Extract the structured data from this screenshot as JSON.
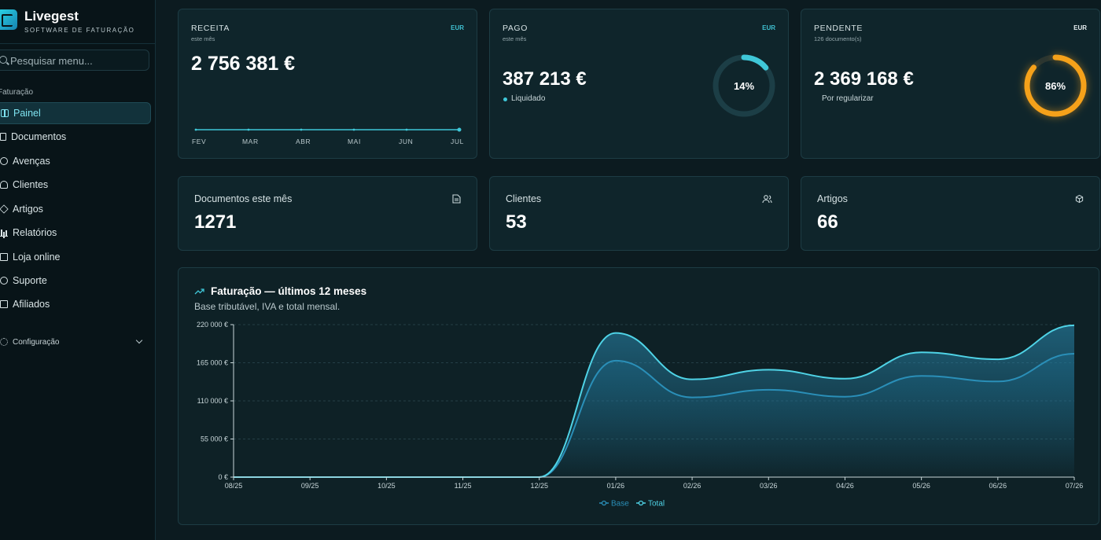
{
  "brand": {
    "name": "Livegest",
    "subtitle": "SOFTWARE DE FATURAÇÃO"
  },
  "search": {
    "placeholder": "Pesquisar menu..."
  },
  "sidebar": {
    "section_label": "Faturação",
    "items": [
      {
        "label": "Painel",
        "icon": "dashboard-icon",
        "active": true
      },
      {
        "label": "Documentos",
        "icon": "document-icon"
      },
      {
        "label": "Avenças",
        "icon": "recurring-icon"
      },
      {
        "label": "Clientes",
        "icon": "users-icon"
      },
      {
        "label": "Artigos",
        "icon": "box-icon"
      },
      {
        "label": "Relatórios",
        "icon": "bar-chart-icon"
      },
      {
        "label": "Loja online",
        "icon": "store-icon"
      },
      {
        "label": "Suporte",
        "icon": "help-icon"
      },
      {
        "label": "Afiliados",
        "icon": "gift-icon"
      }
    ],
    "config_label": "Configuração"
  },
  "kpi": {
    "receita": {
      "label": "RECEITA",
      "sub": "este mês",
      "currency": "EUR",
      "value": "2 756 381 €",
      "months": [
        "FEV",
        "MAR",
        "ABR",
        "MAI",
        "JUN",
        "JUL"
      ]
    },
    "pago": {
      "label": "PAGO",
      "sub": "este mês",
      "currency": "EUR",
      "value": "387 213 €",
      "status": "Liquidado",
      "percent_label": "14%",
      "percent": 14,
      "color": "#3fc7d8"
    },
    "pendente": {
      "label": "PENDENTE",
      "sub": "126 documento(s)",
      "currency": "EUR",
      "value": "2 369 168 €",
      "status": "Por regularizar",
      "percent_label": "86%",
      "percent": 86,
      "color": "#f5a11a"
    }
  },
  "stats": [
    {
      "label": "Documentos este mês",
      "value": "1271",
      "icon": "document-icon"
    },
    {
      "label": "Clientes",
      "value": "53",
      "icon": "users-icon"
    },
    {
      "label": "Artigos",
      "value": "66",
      "icon": "box-icon"
    }
  ],
  "chart_panel": {
    "title": "Faturação — últimos 12 meses",
    "subtitle": "Base tributável, IVA e total mensal.",
    "trend_icon": "trend-up-icon"
  },
  "chart_data": {
    "type": "area",
    "categories": [
      "08/25",
      "09/25",
      "10/25",
      "11/25",
      "12/25",
      "01/26",
      "02/26",
      "03/26",
      "04/26",
      "05/26",
      "06/26",
      "07/26"
    ],
    "series": [
      {
        "name": "Base",
        "color": "#2a8fb8",
        "values": [
          0,
          0,
          0,
          0,
          0,
          168000,
          115000,
          126000,
          116000,
          146000,
          138000,
          178000
        ]
      },
      {
        "name": "Total",
        "color": "#4fd3e6",
        "values": [
          0,
          0,
          0,
          0,
          0,
          208000,
          141000,
          155000,
          142000,
          180000,
          170000,
          219000
        ]
      }
    ],
    "yticks": [
      "0 €",
      "55 000 €",
      "110 000 €",
      "165 000 €",
      "220 000 €"
    ],
    "ylim": [
      0,
      220000
    ],
    "grid": true,
    "legend": "bottom-center"
  }
}
